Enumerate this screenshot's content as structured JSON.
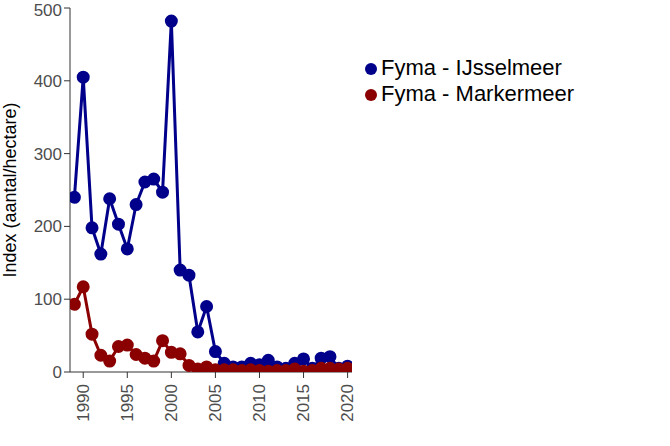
{
  "chart_data": {
    "type": "line",
    "y_label": "Index (aantal/hectare)",
    "x": [
      1989,
      1990,
      1991,
      1992,
      1993,
      1994,
      1995,
      1996,
      1997,
      1998,
      1999,
      2000,
      2001,
      2002,
      2003,
      2004,
      2005,
      2006,
      2007,
      2008,
      2009,
      2010,
      2011,
      2012,
      2013,
      2014,
      2015,
      2016,
      2017,
      2018,
      2019,
      2020
    ],
    "series": [
      {
        "name": "Fyma - IJsselmeer",
        "color": "#00008B",
        "marker": "circle",
        "values": [
          240,
          405,
          198,
          162,
          238,
          203,
          169,
          230,
          261,
          265,
          247,
          482,
          140,
          133,
          55,
          90,
          28,
          12,
          7,
          7,
          12,
          10,
          16,
          7,
          5,
          12,
          18,
          5,
          19,
          21,
          5,
          8
        ]
      },
      {
        "name": "Fyma - Markermeer",
        "color": "#8B0000",
        "marker": "circle",
        "values": [
          93,
          117,
          52,
          23,
          15,
          35,
          37,
          24,
          19,
          15,
          43,
          27,
          25,
          9,
          4,
          7,
          3,
          3,
          3,
          2,
          3,
          2,
          1,
          2,
          2,
          4,
          1,
          2,
          5,
          5,
          4,
          5
        ]
      }
    ],
    "xlim": [
      1988.5,
      2020.5
    ],
    "xticks": [
      1990,
      1995,
      2000,
      2005,
      2010,
      2015,
      2020
    ],
    "ylim": [
      0,
      500
    ],
    "yticks": [
      0,
      100,
      200,
      300,
      400,
      500
    ],
    "grid": false,
    "legend": "top-right"
  }
}
